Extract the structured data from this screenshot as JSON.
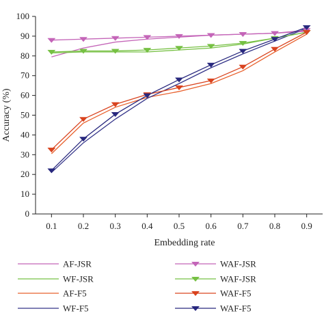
{
  "chart_data": {
    "type": "line",
    "xlabel": "Embedding rate",
    "ylabel": "Accuracy (%)",
    "xlim": [
      0.1,
      0.9
    ],
    "ylim": [
      0,
      100
    ],
    "x_ticks": [
      "0.1",
      "0.2",
      "0.3",
      "0.4",
      "0.5",
      "0.6",
      "0.7",
      "0.8",
      "0.9"
    ],
    "y_ticks": [
      "0",
      "10",
      "20",
      "30",
      "40",
      "50",
      "60",
      "70",
      "80",
      "90",
      "100"
    ],
    "grid": false,
    "legend_placement": "bottom",
    "x": [
      0.1,
      0.2,
      0.3,
      0.4,
      0.5,
      0.6,
      0.7,
      0.8,
      0.9
    ],
    "series": [
      {
        "name": "AF-JSR",
        "color": "#c465b8",
        "marker": "none",
        "values": [
          79.5,
          84,
          87,
          88.5,
          89.5,
          90.5,
          91,
          91.5,
          92.5
        ]
      },
      {
        "name": "WF-JSR",
        "color": "#76c043",
        "marker": "none",
        "values": [
          81.5,
          82,
          82,
          82,
          83,
          84,
          86,
          89,
          92
        ]
      },
      {
        "name": "AF-F5",
        "color": "#e8602c",
        "marker": "none",
        "values": [
          30.5,
          46,
          54,
          59,
          62,
          66,
          72.5,
          82,
          91
        ]
      },
      {
        "name": "WF-F5",
        "color": "#343489",
        "marker": "none",
        "values": [
          21,
          36,
          48,
          58.5,
          66,
          74,
          81,
          87.5,
          94
        ]
      },
      {
        "name": "WAF-JSR",
        "color": "#c465b8",
        "marker": "triangle-down",
        "values": [
          88,
          88.5,
          89,
          89.5,
          90,
          90.5,
          91,
          91.5,
          93
        ]
      },
      {
        "name": "WAF-JSR",
        "color": "#76c043",
        "marker": "triangle-down",
        "values": [
          82,
          82.5,
          82.5,
          83,
          84,
          85,
          86.5,
          89,
          92
        ]
      },
      {
        "name": "WAF-F5",
        "color": "#d9431e",
        "marker": "triangle-down",
        "values": [
          32.5,
          48,
          55.5,
          60.5,
          64,
          67.5,
          74.5,
          83.5,
          92
        ]
      },
      {
        "name": "WAF-F5",
        "color": "#28287e",
        "marker": "triangle-down",
        "values": [
          22,
          38,
          50.5,
          60,
          68,
          75.5,
          82.5,
          88.5,
          94.5
        ]
      }
    ]
  }
}
